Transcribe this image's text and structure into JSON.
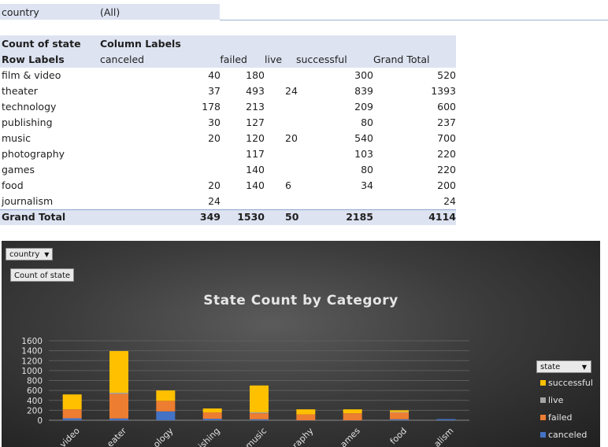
{
  "filter": {
    "label": "country",
    "value": "(All)"
  },
  "pivot": {
    "value_field": "Count of state",
    "column_labels": "Column Labels",
    "row_labels": "Row Labels",
    "columns": [
      "canceled",
      "failed",
      "live",
      "successful",
      "Grand Total"
    ],
    "rows": [
      {
        "label": "film & video",
        "cells": [
          "40",
          "180",
          "",
          "300",
          "520"
        ]
      },
      {
        "label": "theater",
        "cells": [
          "37",
          "493",
          "24",
          "839",
          "1393"
        ]
      },
      {
        "label": "technology",
        "cells": [
          "178",
          "213",
          "",
          "209",
          "600"
        ]
      },
      {
        "label": "publishing",
        "cells": [
          "30",
          "127",
          "",
          "80",
          "237"
        ]
      },
      {
        "label": "music",
        "cells": [
          "20",
          "120",
          "20",
          "540",
          "700"
        ]
      },
      {
        "label": "photography",
        "cells": [
          "",
          "117",
          "",
          "103",
          "220"
        ]
      },
      {
        "label": "games",
        "cells": [
          "",
          "140",
          "",
          "80",
          "220"
        ]
      },
      {
        "label": "food",
        "cells": [
          "20",
          "140",
          "6",
          "34",
          "200"
        ]
      },
      {
        "label": "journalism",
        "cells": [
          "24",
          "",
          "",
          "",
          "24"
        ]
      }
    ],
    "grand_total": {
      "label": "Grand Total",
      "cells": [
        "349",
        "1530",
        "50",
        "2185",
        "4114"
      ]
    }
  },
  "chart": {
    "filter_button": "country",
    "value_button": "Count of state",
    "legend_button": "state"
  },
  "chart_data": {
    "type": "bar",
    "stacked": true,
    "title": "State Count by Category",
    "categories": [
      "film & video",
      "theater",
      "technology",
      "publishing",
      "music",
      "photography",
      "games",
      "food",
      "journalism"
    ],
    "category_labels_shown": [
      "video",
      "eater",
      "ology",
      "ishing",
      "music",
      "raphy",
      "ames",
      "food",
      "alism"
    ],
    "series": [
      {
        "name": "canceled",
        "color": "#4472c4",
        "values": [
          40,
          37,
          178,
          30,
          20,
          0,
          0,
          20,
          24
        ]
      },
      {
        "name": "failed",
        "color": "#ed7d31",
        "values": [
          180,
          493,
          213,
          127,
          120,
          117,
          140,
          140,
          0
        ]
      },
      {
        "name": "live",
        "color": "#a5a5a5",
        "values": [
          0,
          24,
          0,
          0,
          20,
          0,
          0,
          6,
          0
        ]
      },
      {
        "name": "successful",
        "color": "#ffc000",
        "values": [
          300,
          839,
          209,
          80,
          540,
          103,
          80,
          34,
          0
        ]
      }
    ],
    "yticks": [
      0,
      200,
      400,
      600,
      800,
      1000,
      1200,
      1400,
      1600
    ],
    "ylim": [
      0,
      1600
    ],
    "grid": true,
    "legend_position": "right",
    "legend_order": [
      "successful",
      "live",
      "failed",
      "canceled"
    ]
  }
}
